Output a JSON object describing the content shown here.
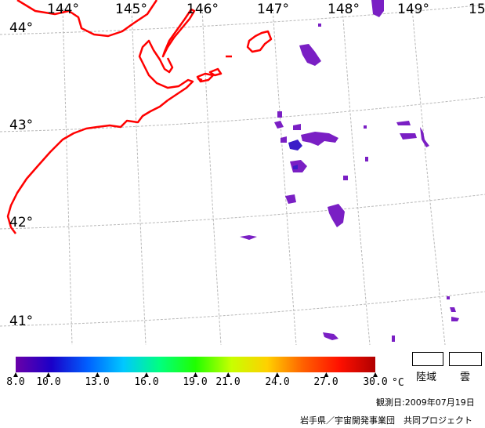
{
  "map": {
    "longitude_labels": [
      "144°",
      "145°",
      "146°",
      "147°",
      "148°",
      "149°",
      "15"
    ],
    "latitude_labels": [
      "44°",
      "43°",
      "42°",
      "41°"
    ],
    "colors": {
      "coastline": "#ff0000",
      "graticule": "#b8b8b8",
      "sst_patch": "#7a1fc4",
      "sst_patch_cold": "#3a1cc8"
    }
  },
  "colorbar": {
    "tick_labels": [
      "8.0",
      "10.0",
      "13.0",
      "16.0",
      "19.0",
      "21.0",
      "24.0",
      "27.0",
      "30.0"
    ],
    "tick_values": [
      8,
      10,
      13,
      16,
      19,
      21,
      24,
      27,
      30
    ],
    "range": [
      8,
      30
    ],
    "unit": "°C",
    "gradient": [
      "#6a00a8",
      "#1a00c8",
      "#0060ff",
      "#00c8ff",
      "#00ff80",
      "#20ff00",
      "#c8ff00",
      "#ffd000",
      "#ff6000",
      "#ff1000",
      "#b00000"
    ]
  },
  "legend": {
    "land_label": "陸域",
    "cloud_label": "雲"
  },
  "footer": {
    "observation_date": "観測日:2009年07月19日",
    "credit": "岩手県／宇宙開発事業団　共同プロジェクト"
  }
}
